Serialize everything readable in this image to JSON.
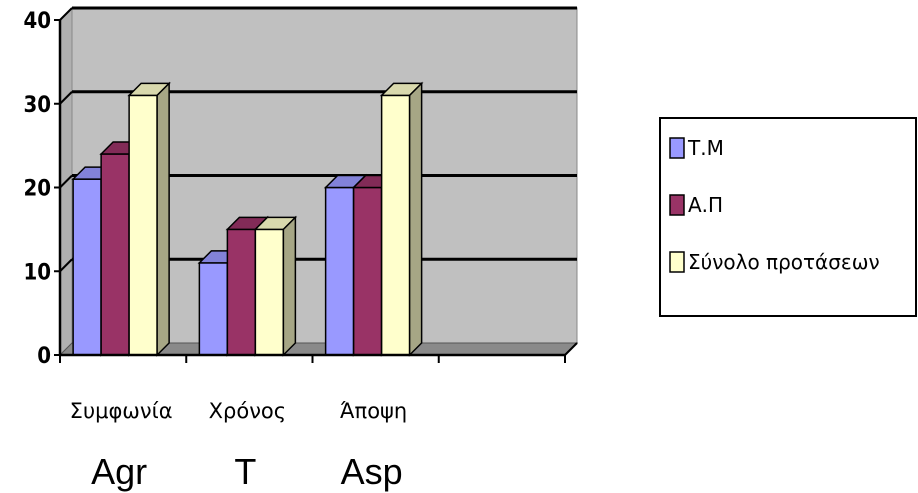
{
  "chart_data": {
    "type": "bar",
    "categories": [
      "Συμφωνία",
      "Χρόνος",
      "Άποψη"
    ],
    "category_subtitles": [
      "Agr",
      "T",
      "Asp"
    ],
    "series": [
      {
        "name": "Τ.Μ",
        "values": [
          21,
          11,
          20
        ],
        "color": "#9999ff"
      },
      {
        "name": "Α.Π",
        "values": [
          24,
          15,
          20
        ],
        "color": "#993366"
      },
      {
        "name": "Σύνολο προτάσεων",
        "values": [
          31,
          15,
          31
        ],
        "color": "#ffffcc"
      }
    ],
    "ylim": [
      0,
      40
    ],
    "yticks": [
      "0",
      "10",
      "20",
      "30",
      "40"
    ],
    "grid": true,
    "plot_background": "#c0c0c0",
    "legend_position": "right",
    "style": "3d-clustered-column"
  }
}
